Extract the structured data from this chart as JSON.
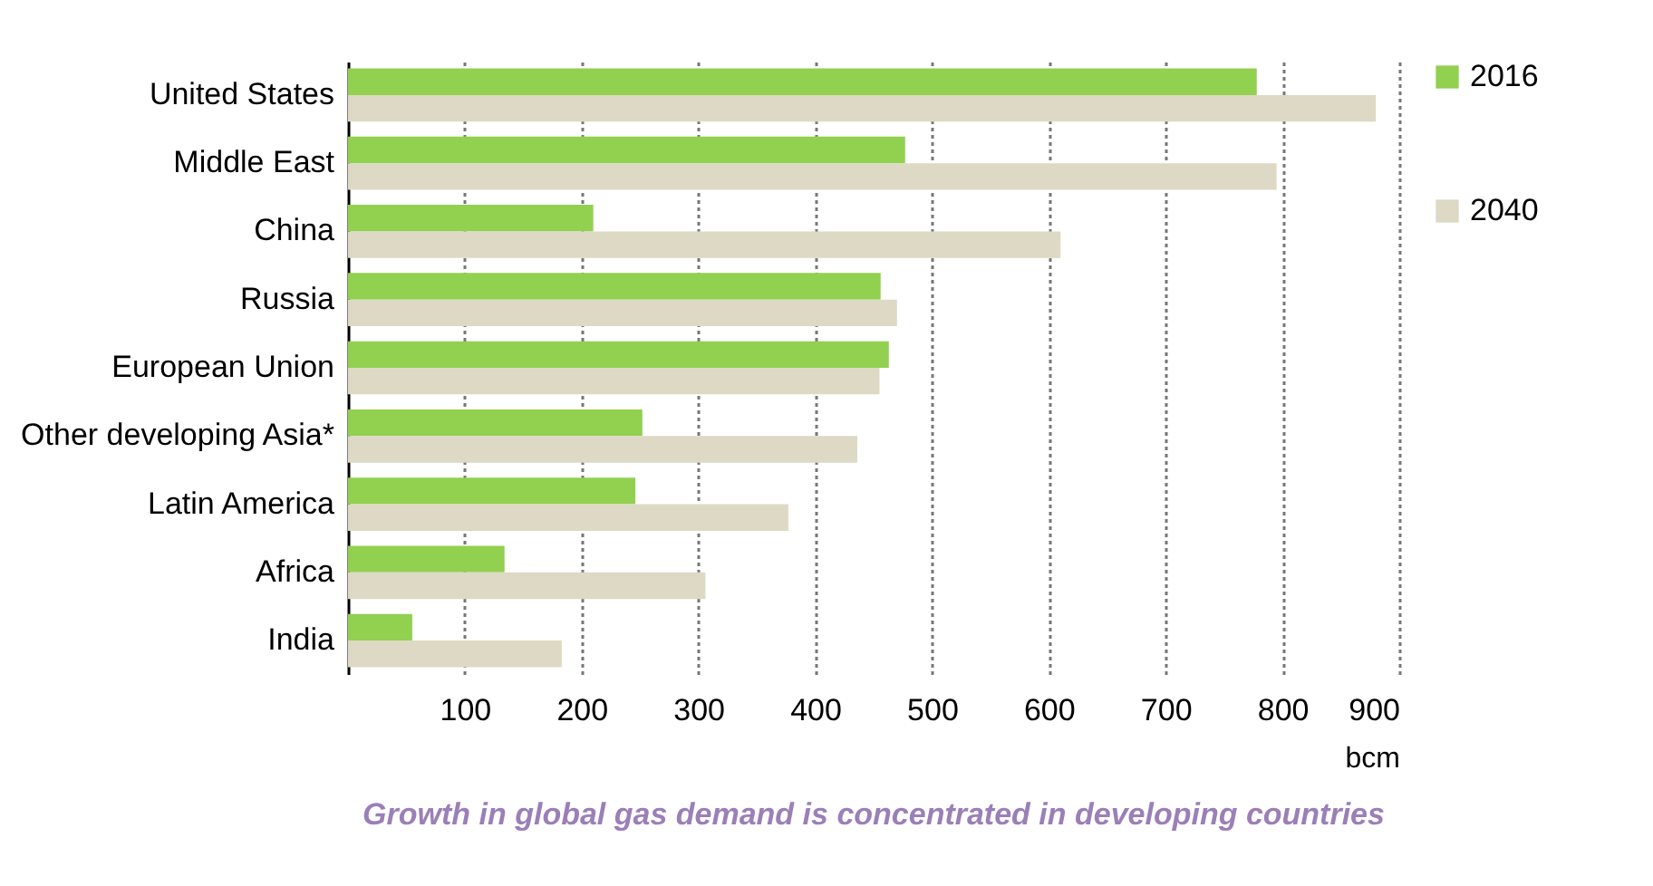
{
  "chart_data": {
    "type": "bar",
    "orientation": "horizontal",
    "categories": [
      "United States",
      "Middle East",
      "China",
      "Russia",
      "European Union",
      "Other developing Asia*",
      "Latin America",
      "Africa",
      "India"
    ],
    "series": [
      {
        "name": "2016",
        "color": "#92d050",
        "values": [
          778,
          477,
          210,
          456,
          463,
          252,
          246,
          134,
          55
        ]
      },
      {
        "name": "2040",
        "color": "#ddd9c4",
        "values": [
          880,
          795,
          610,
          470,
          455,
          436,
          377,
          306,
          183
        ]
      }
    ],
    "xlim": [
      0,
      900
    ],
    "xticks": [
      100,
      200,
      300,
      400,
      500,
      600,
      700,
      800,
      900
    ],
    "xlabel": "bcm",
    "grid": "x",
    "legend": "right",
    "annotations": [
      "Growth in global gas demand is concentrated in developing countries"
    ]
  }
}
